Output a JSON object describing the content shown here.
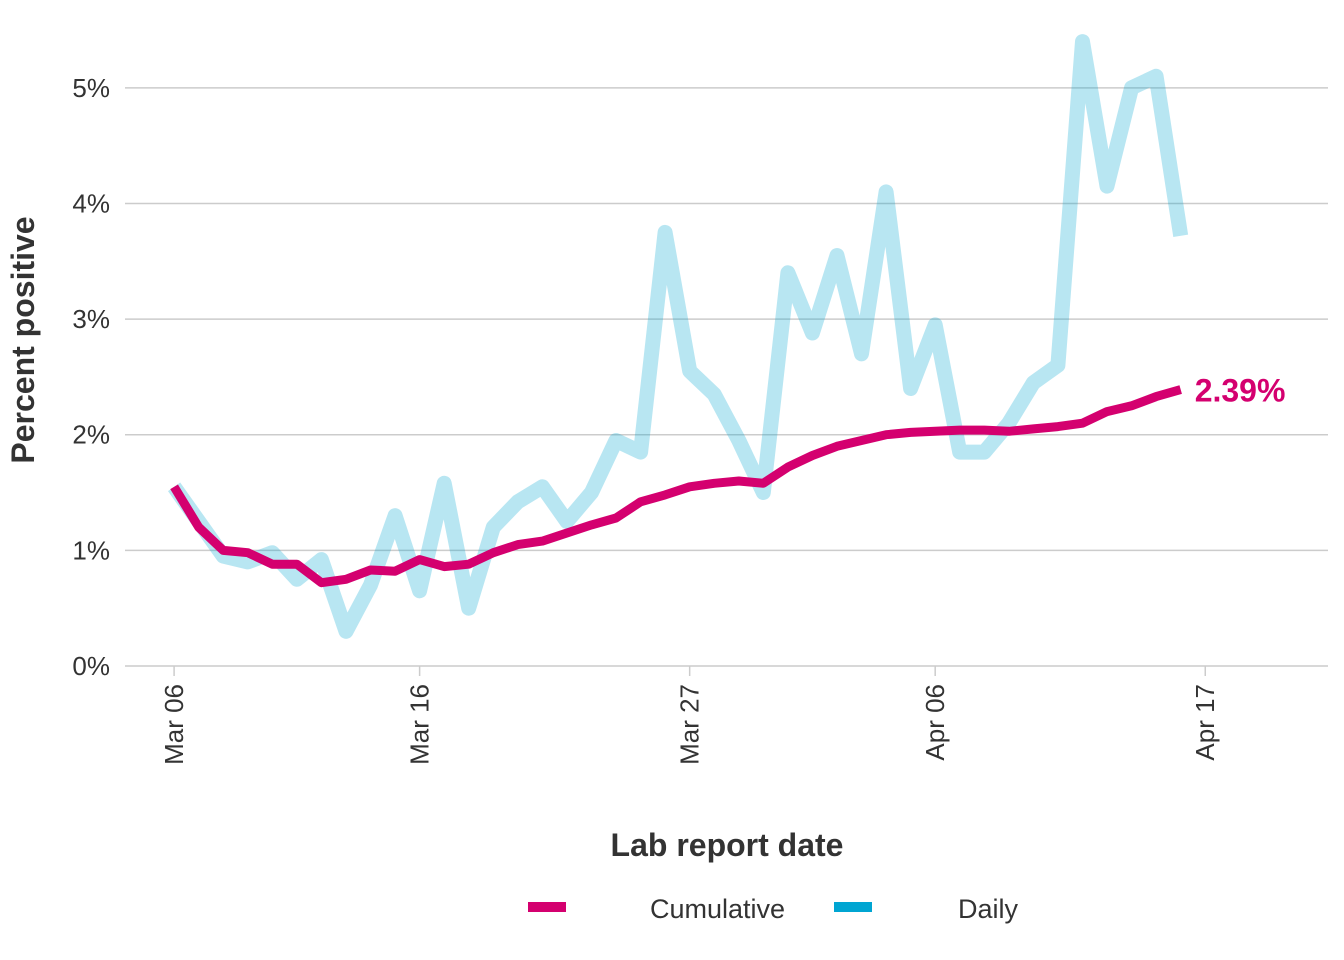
{
  "colors": {
    "cumulative": "#d4006f",
    "daily": "#00a5d2",
    "grid": "#cccccc",
    "text": "#333333"
  },
  "chart_data": {
    "type": "line",
    "xlabel": "Lab report date",
    "ylabel": "Percent positive",
    "ylim": [
      0,
      5.5
    ],
    "y_ticks": [
      {
        "value": 0,
        "label": "0%"
      },
      {
        "value": 1,
        "label": "1%"
      },
      {
        "value": 2,
        "label": "2%"
      },
      {
        "value": 3,
        "label": "3%"
      },
      {
        "value": 4,
        "label": "4%"
      },
      {
        "value": 5,
        "label": "5%"
      }
    ],
    "x_ticks": [
      {
        "date": "2020-03-06",
        "label": "Mar 06"
      },
      {
        "date": "2020-03-16",
        "label": "Mar 16"
      },
      {
        "date": "2020-03-27",
        "label": "Mar 27"
      },
      {
        "date": "2020-04-06",
        "label": "Apr 06"
      },
      {
        "date": "2020-04-17",
        "label": "Apr 17"
      }
    ],
    "xlim": [
      "2020-03-04",
      "2020-04-22"
    ],
    "grid": "horizontal",
    "legend_position": "bottom",
    "end_label": "2.39%",
    "series": [
      {
        "name": "Daily",
        "color": "#00a5d2",
        "points": [
          [
            "2020-03-06",
            1.55
          ],
          [
            "2020-03-07",
            1.25
          ],
          [
            "2020-03-08",
            0.95
          ],
          [
            "2020-03-09",
            0.9
          ],
          [
            "2020-03-10",
            0.98
          ],
          [
            "2020-03-11",
            0.75
          ],
          [
            "2020-03-12",
            0.92
          ],
          [
            "2020-03-13",
            0.3
          ],
          [
            "2020-03-14",
            0.7
          ],
          [
            "2020-03-15",
            1.3
          ],
          [
            "2020-03-16",
            0.65
          ],
          [
            "2020-03-17",
            1.58
          ],
          [
            "2020-03-18",
            0.5
          ],
          [
            "2020-03-19",
            1.2
          ],
          [
            "2020-03-20",
            1.42
          ],
          [
            "2020-03-21",
            1.55
          ],
          [
            "2020-03-22",
            1.25
          ],
          [
            "2020-03-23",
            1.5
          ],
          [
            "2020-03-24",
            1.95
          ],
          [
            "2020-03-25",
            1.85
          ],
          [
            "2020-03-26",
            3.75
          ],
          [
            "2020-03-27",
            2.55
          ],
          [
            "2020-03-28",
            2.35
          ],
          [
            "2020-03-29",
            1.95
          ],
          [
            "2020-03-30",
            1.5
          ],
          [
            "2020-03-31",
            3.4
          ],
          [
            "2020-04-01",
            2.88
          ],
          [
            "2020-04-02",
            3.55
          ],
          [
            "2020-04-03",
            2.7
          ],
          [
            "2020-04-04",
            4.1
          ],
          [
            "2020-04-05",
            2.4
          ],
          [
            "2020-04-06",
            2.95
          ],
          [
            "2020-04-07",
            1.85
          ],
          [
            "2020-04-08",
            1.85
          ],
          [
            "2020-04-09",
            2.1
          ],
          [
            "2020-04-10",
            2.45
          ],
          [
            "2020-04-11",
            2.6
          ],
          [
            "2020-04-12",
            5.4
          ],
          [
            "2020-04-13",
            4.15
          ],
          [
            "2020-04-14",
            5.0
          ],
          [
            "2020-04-15",
            5.1
          ],
          [
            "2020-04-16",
            3.72
          ]
        ]
      },
      {
        "name": "Cumulative",
        "color": "#d4006f",
        "points": [
          [
            "2020-03-06",
            1.55
          ],
          [
            "2020-03-07",
            1.2
          ],
          [
            "2020-03-08",
            1.0
          ],
          [
            "2020-03-09",
            0.98
          ],
          [
            "2020-03-10",
            0.88
          ],
          [
            "2020-03-11",
            0.88
          ],
          [
            "2020-03-12",
            0.72
          ],
          [
            "2020-03-13",
            0.75
          ],
          [
            "2020-03-14",
            0.83
          ],
          [
            "2020-03-15",
            0.82
          ],
          [
            "2020-03-16",
            0.92
          ],
          [
            "2020-03-17",
            0.86
          ],
          [
            "2020-03-18",
            0.88
          ],
          [
            "2020-03-19",
            0.98
          ],
          [
            "2020-03-20",
            1.05
          ],
          [
            "2020-03-21",
            1.08
          ],
          [
            "2020-03-22",
            1.15
          ],
          [
            "2020-03-23",
            1.22
          ],
          [
            "2020-03-24",
            1.28
          ],
          [
            "2020-03-25",
            1.42
          ],
          [
            "2020-03-26",
            1.48
          ],
          [
            "2020-03-27",
            1.55
          ],
          [
            "2020-03-28",
            1.58
          ],
          [
            "2020-03-29",
            1.6
          ],
          [
            "2020-03-30",
            1.58
          ],
          [
            "2020-03-31",
            1.72
          ],
          [
            "2020-04-01",
            1.82
          ],
          [
            "2020-04-02",
            1.9
          ],
          [
            "2020-04-03",
            1.95
          ],
          [
            "2020-04-04",
            2.0
          ],
          [
            "2020-04-05",
            2.02
          ],
          [
            "2020-04-06",
            2.03
          ],
          [
            "2020-04-07",
            2.04
          ],
          [
            "2020-04-08",
            2.04
          ],
          [
            "2020-04-09",
            2.03
          ],
          [
            "2020-04-10",
            2.05
          ],
          [
            "2020-04-11",
            2.07
          ],
          [
            "2020-04-12",
            2.1
          ],
          [
            "2020-04-13",
            2.2
          ],
          [
            "2020-04-14",
            2.25
          ],
          [
            "2020-04-15",
            2.33
          ],
          [
            "2020-04-16",
            2.39
          ]
        ]
      }
    ],
    "legend": [
      {
        "label": "Cumulative",
        "color": "#d4006f"
      },
      {
        "label": "Daily",
        "color": "#00a5d2"
      }
    ]
  }
}
